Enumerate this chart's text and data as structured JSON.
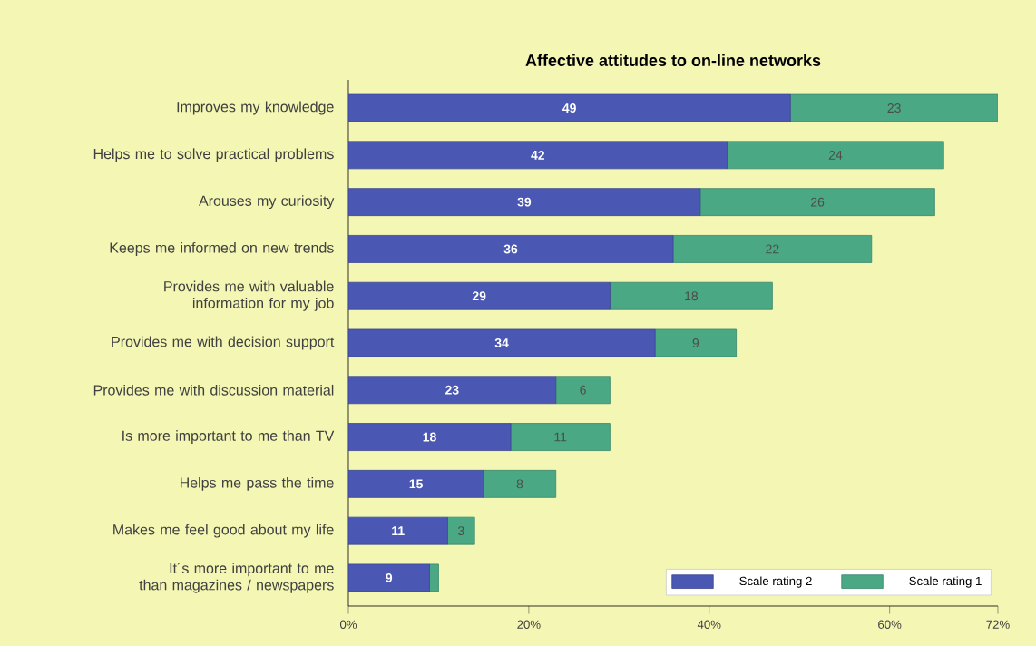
{
  "chart_data": {
    "type": "bar",
    "orientation": "horizontal",
    "stacked": true,
    "title": "Affective attitudes to on-line networks",
    "categories": [
      "Improves my knowledge",
      "Helps me to solve practical problems",
      "Arouses my curiosity",
      "Keeps me informed on new trends",
      "Provides me with valuable information for my job",
      "Provides me with decision support",
      "Provides me with discussion material",
      "Is more important to me than TV",
      "Helps me pass the time",
      "Makes me feel good about my life",
      "It´s more important to me than magazines / newspapers"
    ],
    "series": [
      {
        "name": "Scale rating 2",
        "color": "#4a58b4",
        "values": [
          49,
          42,
          39,
          36,
          29,
          34,
          23,
          18,
          15,
          11,
          9
        ],
        "value_labels": [
          "49",
          "42",
          "39",
          "36",
          "29",
          "34",
          "23",
          "18",
          "15",
          "11",
          "9"
        ]
      },
      {
        "name": "Scale rating 1",
        "color": "#4aa884",
        "values": [
          23,
          24,
          26,
          22,
          18,
          9,
          6,
          11,
          8,
          3,
          1
        ],
        "value_labels": [
          "23",
          "24",
          "26",
          "22",
          "18",
          "9",
          "6",
          "11",
          "8",
          "3",
          null
        ]
      }
    ],
    "xlim": [
      0,
      72
    ],
    "xticks": [
      {
        "value": 0,
        "label": "0%"
      },
      {
        "value": 20,
        "label": "20%"
      },
      {
        "value": 40,
        "label": "40%"
      },
      {
        "value": 60,
        "label": "60%"
      },
      {
        "value": 72,
        "label": "72%"
      }
    ],
    "legend": "bottom right",
    "grid": false
  }
}
